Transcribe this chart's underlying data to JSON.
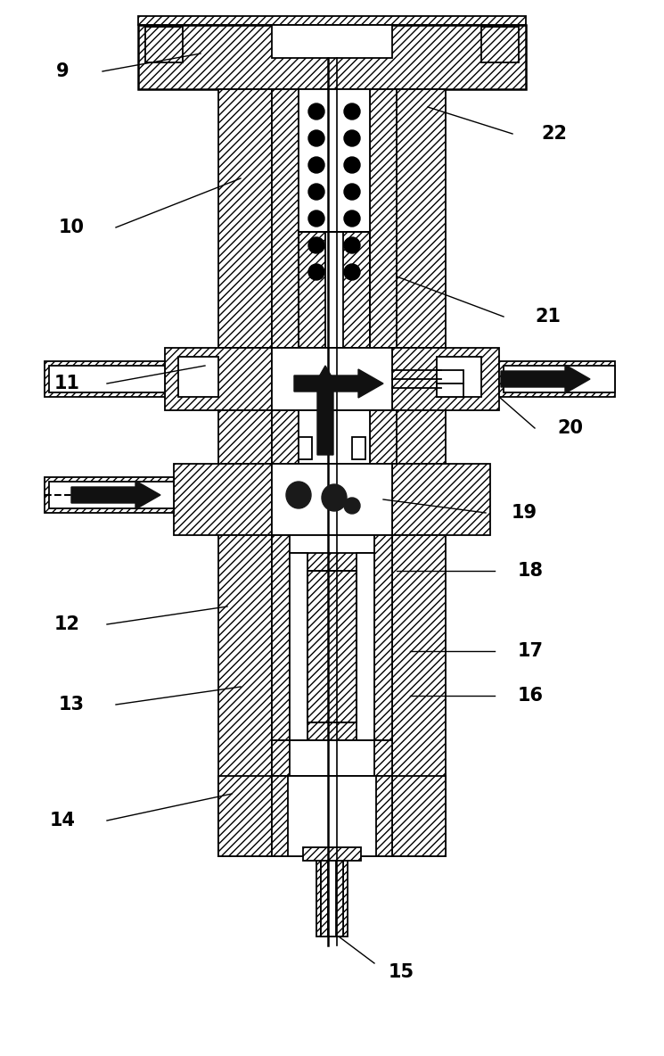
{
  "bg_color": "#ffffff",
  "line_color": "#000000",
  "figsize": [
    7.45,
    11.84
  ],
  "dpi": 100,
  "label_fontsize": 15,
  "label_fontweight": "bold"
}
